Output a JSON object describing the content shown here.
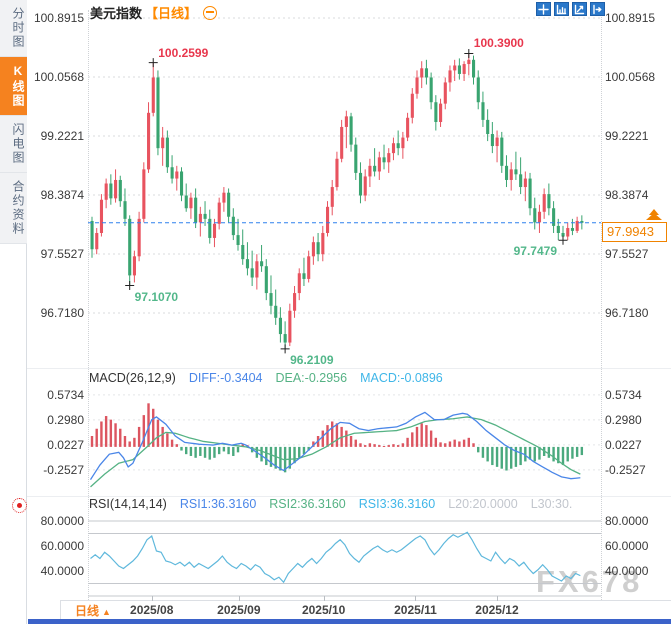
{
  "header": {
    "symbol": "美元指数",
    "period_tag": "【日线】"
  },
  "sidebar": {
    "tabs": [
      {
        "label": "分时图",
        "selected": false
      },
      {
        "label": "K线图",
        "selected": true
      },
      {
        "label": "闪电图",
        "selected": false
      },
      {
        "label": "合约资料",
        "selected": false
      }
    ]
  },
  "toolbar": {
    "icons": [
      "crosshair",
      "zoom-area",
      "trend-zoom",
      "pan-right"
    ]
  },
  "current_price": {
    "value": "97.9943"
  },
  "macd_panel": {
    "title": "MACD(26,12,9)",
    "diff_label": "DIFF:-0.3404",
    "dea_label": "DEA:-0.2956",
    "macd_label": "MACD:-0.0896"
  },
  "rsi_panel": {
    "title": "RSI(14,14,14)",
    "rsi1_label": "RSI1:36.3160",
    "rsi2_label": "RSI2:36.3160",
    "rsi3_label": "RSI3:36.3160",
    "l20_label": "L20:20.0000",
    "l30_label": "L30:30."
  },
  "bottom": {
    "period": "日线",
    "arrow": "▲"
  },
  "watermark": "FX678",
  "colors": {
    "up_candle": "#e8535f",
    "down_candle": "#39a470",
    "high_annotation": "#e8374d",
    "low_annotation": "#52b78a",
    "accent_orange": "#f5821f",
    "price_line_blue": "#2f80ed",
    "diff_line": "#4a86e8",
    "dea_line": "#55b284",
    "rsi_line": "#5fb8dc",
    "hist_up": "#dc5560",
    "hist_down": "#4aa97e",
    "toolbar_blue": "#2a78ca"
  },
  "chart_data": {
    "type": "candlestick+indicators",
    "symbol": "美元指数",
    "period": "日线",
    "price_axis_labels": [
      "100.8915",
      "100.0568",
      "99.2221",
      "98.3874",
      "97.5527",
      "96.7180"
    ],
    "price_axis_values": [
      100.8915,
      100.0568,
      99.2221,
      98.3874,
      97.5527,
      96.718
    ],
    "current_price": 97.9943,
    "x_ticks": [
      {
        "label": "2025/08",
        "index": 13
      },
      {
        "label": "2025/09",
        "index": 31.5
      },
      {
        "label": "2025/10",
        "index": 49.5
      },
      {
        "label": "2025/11",
        "index": 69
      },
      {
        "label": "2025/12",
        "index": 86.3
      }
    ],
    "annotations": [
      {
        "label": "100.2599",
        "index": 13,
        "price": 100.2599,
        "type": "high",
        "placement": "top-right"
      },
      {
        "label": "100.3900",
        "index": 80,
        "price": 100.39,
        "type": "high",
        "placement": "top-right"
      },
      {
        "label": "97.1070",
        "index": 8,
        "price": 97.107,
        "type": "low",
        "placement": "bottom-right"
      },
      {
        "label": "96.2109",
        "index": 41,
        "price": 96.2109,
        "type": "low",
        "placement": "bottom-right"
      },
      {
        "label": "97.7479",
        "index": 100,
        "price": 97.7479,
        "type": "low",
        "placement": "bottom-left"
      }
    ],
    "candles": [
      [
        98.02,
        98.08,
        97.5,
        97.62
      ],
      [
        97.62,
        97.92,
        97.55,
        97.85
      ],
      [
        97.85,
        98.4,
        97.8,
        98.32
      ],
      [
        98.32,
        98.62,
        98.2,
        98.55
      ],
      [
        98.55,
        98.68,
        98.25,
        98.34
      ],
      [
        98.34,
        98.75,
        98.28,
        98.6
      ],
      [
        98.6,
        98.66,
        98.22,
        98.3
      ],
      [
        98.3,
        98.48,
        97.95,
        98.05
      ],
      [
        98.05,
        98.1,
        97.107,
        97.25
      ],
      [
        97.25,
        97.6,
        97.15,
        97.52
      ],
      [
        97.52,
        98.15,
        97.45,
        98.05
      ],
      [
        98.05,
        98.85,
        98.0,
        98.75
      ],
      [
        98.75,
        99.7,
        98.7,
        99.55
      ],
      [
        99.55,
        100.2599,
        99.5,
        100.05
      ],
      [
        100.05,
        100.15,
        98.95,
        99.05
      ],
      [
        99.05,
        99.35,
        98.8,
        99.2
      ],
      [
        99.2,
        99.3,
        98.7,
        98.78
      ],
      [
        98.78,
        98.95,
        98.55,
        98.62
      ],
      [
        98.62,
        98.8,
        98.45,
        98.72
      ],
      [
        98.72,
        98.78,
        98.3,
        98.38
      ],
      [
        98.38,
        98.55,
        98.15,
        98.2
      ],
      [
        98.2,
        98.42,
        98.05,
        98.35
      ],
      [
        98.35,
        98.48,
        97.92,
        98.0
      ],
      [
        98.0,
        98.22,
        97.8,
        98.12
      ],
      [
        98.12,
        98.3,
        97.95,
        98.05
      ],
      [
        98.05,
        98.18,
        97.7,
        97.78
      ],
      [
        97.78,
        98.05,
        97.65,
        97.98
      ],
      [
        97.98,
        98.35,
        97.9,
        98.28
      ],
      [
        98.28,
        98.5,
        98.15,
        98.42
      ],
      [
        98.42,
        98.48,
        98.0,
        98.08
      ],
      [
        98.08,
        98.2,
        97.75,
        97.82
      ],
      [
        97.82,
        98.05,
        97.6,
        97.68
      ],
      [
        97.68,
        97.9,
        97.4,
        97.48
      ],
      [
        97.48,
        97.72,
        97.25,
        97.35
      ],
      [
        97.35,
        97.6,
        97.1,
        97.22
      ],
      [
        97.22,
        97.55,
        97.05,
        97.45
      ],
      [
        97.45,
        97.68,
        97.3,
        97.38
      ],
      [
        97.38,
        97.48,
        96.9,
        97.0
      ],
      [
        97.0,
        97.25,
        96.7,
        96.82
      ],
      [
        96.82,
        97.05,
        96.55,
        96.65
      ],
      [
        96.65,
        96.8,
        96.3,
        96.42
      ],
      [
        96.42,
        96.6,
        96.2109,
        96.3
      ],
      [
        96.3,
        96.85,
        96.25,
        96.75
      ],
      [
        96.75,
        97.1,
        96.65,
        97.0
      ],
      [
        97.0,
        97.35,
        96.9,
        97.28
      ],
      [
        97.28,
        97.5,
        97.1,
        97.2
      ],
      [
        97.2,
        97.6,
        97.15,
        97.52
      ],
      [
        97.52,
        97.8,
        97.4,
        97.72
      ],
      [
        97.72,
        97.85,
        97.45,
        97.55
      ],
      [
        97.55,
        97.95,
        97.45,
        97.85
      ],
      [
        97.85,
        98.3,
        97.8,
        98.22
      ],
      [
        98.22,
        98.6,
        98.1,
        98.5
      ],
      [
        98.5,
        99.0,
        98.45,
        98.9
      ],
      [
        98.9,
        99.45,
        98.85,
        99.35
      ],
      [
        99.35,
        99.58,
        99.05,
        99.5
      ],
      [
        99.5,
        99.55,
        99.0,
        99.1
      ],
      [
        99.1,
        99.2,
        98.6,
        98.7
      ],
      [
        98.7,
        98.85,
        98.27,
        98.38
      ],
      [
        98.38,
        98.75,
        98.3,
        98.65
      ],
      [
        98.65,
        98.9,
        98.5,
        98.8
      ],
      [
        98.8,
        99.05,
        98.65,
        98.72
      ],
      [
        98.72,
        99.0,
        98.6,
        98.92
      ],
      [
        98.92,
        99.1,
        98.75,
        98.85
      ],
      [
        98.85,
        99.05,
        98.7,
        98.98
      ],
      [
        98.98,
        99.2,
        98.88,
        99.12
      ],
      [
        99.12,
        99.3,
        98.95,
        99.05
      ],
      [
        99.05,
        99.28,
        98.9,
        99.2
      ],
      [
        99.2,
        99.55,
        99.15,
        99.48
      ],
      [
        99.48,
        99.9,
        99.4,
        99.82
      ],
      [
        99.82,
        100.15,
        99.75,
        100.05
      ],
      [
        100.05,
        100.28,
        99.9,
        100.18
      ],
      [
        100.18,
        100.3,
        99.95,
        100.05
      ],
      [
        100.05,
        100.12,
        99.6,
        99.7
      ],
      [
        99.7,
        99.8,
        99.3,
        99.42
      ],
      [
        99.42,
        99.75,
        99.35,
        99.68
      ],
      [
        99.68,
        100.05,
        99.6,
        99.98
      ],
      [
        99.98,
        100.22,
        99.85,
        100.15
      ],
      [
        100.15,
        100.3,
        100.0,
        100.22
      ],
      [
        100.22,
        100.32,
        100.02,
        100.1
      ],
      [
        100.1,
        100.28,
        100.0,
        100.24
      ],
      [
        100.24,
        100.39,
        100.08,
        100.3
      ],
      [
        100.3,
        100.36,
        99.95,
        100.05
      ],
      [
        100.05,
        100.15,
        99.6,
        99.7
      ],
      [
        99.7,
        99.85,
        99.35,
        99.45
      ],
      [
        99.45,
        99.6,
        99.15,
        99.25
      ],
      [
        99.25,
        99.42,
        98.98,
        99.08
      ],
      [
        99.08,
        99.3,
        98.85,
        99.2
      ],
      [
        99.2,
        99.28,
        98.7,
        98.8
      ],
      [
        98.8,
        98.95,
        98.5,
        98.6
      ],
      [
        98.6,
        98.85,
        98.45,
        98.75
      ],
      [
        98.75,
        99.0,
        98.6,
        98.68
      ],
      [
        98.68,
        98.92,
        98.4,
        98.5
      ],
      [
        98.5,
        98.72,
        98.3,
        98.62
      ],
      [
        98.62,
        98.7,
        98.1,
        98.2
      ],
      [
        98.2,
        98.35,
        97.9,
        98.0
      ],
      [
        98.0,
        98.25,
        97.85,
        98.15
      ],
      [
        98.15,
        98.48,
        98.05,
        98.4
      ],
      [
        98.4,
        98.55,
        98.1,
        98.2
      ],
      [
        98.2,
        98.3,
        97.85,
        97.95
      ],
      [
        97.95,
        98.05,
        97.75,
        97.85
      ],
      [
        97.85,
        97.95,
        97.7479,
        97.8
      ],
      [
        97.8,
        98.0,
        97.75,
        97.92
      ],
      [
        97.92,
        98.05,
        97.82,
        97.88
      ],
      [
        97.88,
        98.08,
        97.85,
        98.02
      ],
      [
        98.02,
        98.1,
        97.9,
        97.9943
      ]
    ],
    "macd": {
      "params": [
        26,
        12,
        9
      ],
      "diff": -0.3404,
      "dea": -0.2956,
      "macd": -0.0896,
      "axis_labels": [
        "0.5734",
        "0.2980",
        "0.0227",
        "-0.2527"
      ],
      "axis_values": [
        0.5734,
        0.298,
        0.0227,
        -0.2527
      ],
      "hist": [
        0.12,
        0.2,
        0.28,
        0.34,
        0.3,
        0.26,
        0.2,
        0.12,
        0.06,
        0.1,
        0.22,
        0.35,
        0.48,
        0.42,
        0.3,
        0.22,
        0.15,
        0.08,
        0.03,
        -0.04,
        -0.08,
        -0.1,
        -0.12,
        -0.1,
        -0.12,
        -0.14,
        -0.12,
        -0.08,
        -0.05,
        -0.08,
        -0.1,
        -0.06,
        0.03,
        0.02,
        -0.06,
        -0.12,
        -0.16,
        -0.2,
        -0.22,
        -0.24,
        -0.26,
        -0.28,
        -0.24,
        -0.18,
        -0.12,
        -0.08,
        -0.04,
        0.06,
        0.12,
        0.18,
        0.24,
        0.28,
        0.26,
        0.22,
        0.18,
        0.12,
        0.08,
        0.04,
        0.02,
        0.04,
        0.03,
        0.02,
        0.01,
        0.02,
        0.03,
        0.02,
        0.04,
        0.1,
        0.16,
        0.22,
        0.26,
        0.24,
        0.18,
        0.1,
        0.05,
        0.04,
        0.06,
        0.08,
        0.06,
        0.08,
        0.1,
        0.04,
        -0.06,
        -0.12,
        -0.16,
        -0.2,
        -0.22,
        -0.24,
        -0.26,
        -0.24,
        -0.22,
        -0.2,
        -0.16,
        -0.14,
        -0.16,
        -0.14,
        -0.1,
        -0.12,
        -0.16,
        -0.18,
        -0.2,
        -0.16,
        -0.13,
        -0.11,
        -0.09
      ],
      "diff_points": [
        [
          0,
          -0.36
        ],
        [
          2,
          -0.2
        ],
        [
          4,
          -0.08
        ],
        [
          6,
          -0.06
        ],
        [
          7,
          -0.12
        ],
        [
          8,
          -0.22
        ],
        [
          9,
          -0.18
        ],
        [
          11,
          0.05
        ],
        [
          13,
          0.3
        ],
        [
          14,
          0.33
        ],
        [
          16,
          0.25
        ],
        [
          18,
          0.12
        ],
        [
          20,
          0.05
        ],
        [
          23,
          0.03
        ],
        [
          26,
          0.02
        ],
        [
          28,
          0.04
        ],
        [
          30,
          0.02
        ],
        [
          32,
          0.04
        ],
        [
          33,
          0.02
        ],
        [
          35,
          -0.05
        ],
        [
          37,
          -0.12
        ],
        [
          39,
          -0.2
        ],
        [
          41,
          -0.26
        ],
        [
          43,
          -0.18
        ],
        [
          45,
          -0.1
        ],
        [
          47,
          0.0
        ],
        [
          49,
          0.1
        ],
        [
          51,
          0.2
        ],
        [
          53,
          0.27
        ],
        [
          55,
          0.26
        ],
        [
          57,
          0.2
        ],
        [
          59,
          0.18
        ],
        [
          61,
          0.2
        ],
        [
          63,
          0.21
        ],
        [
          65,
          0.22
        ],
        [
          67,
          0.26
        ],
        [
          69,
          0.33
        ],
        [
          71,
          0.38
        ],
        [
          73,
          0.3
        ],
        [
          75,
          0.3
        ],
        [
          77,
          0.35
        ],
        [
          79,
          0.37
        ],
        [
          80,
          0.36
        ],
        [
          82,
          0.28
        ],
        [
          84,
          0.18
        ],
        [
          86,
          0.1
        ],
        [
          88,
          0.02
        ],
        [
          90,
          -0.04
        ],
        [
          92,
          -0.08
        ],
        [
          94,
          -0.16
        ],
        [
          96,
          -0.22
        ],
        [
          98,
          -0.28
        ],
        [
          100,
          -0.33
        ],
        [
          102,
          -0.35
        ],
        [
          104,
          -0.34
        ]
      ],
      "dea_points": [
        [
          0,
          -0.44
        ],
        [
          3,
          -0.3
        ],
        [
          6,
          -0.18
        ],
        [
          9,
          -0.14
        ],
        [
          12,
          0.0
        ],
        [
          14,
          0.1
        ],
        [
          16,
          0.16
        ],
        [
          18,
          0.15
        ],
        [
          21,
          0.1
        ],
        [
          24,
          0.06
        ],
        [
          27,
          0.04
        ],
        [
          30,
          0.02
        ],
        [
          33,
          0.0
        ],
        [
          36,
          -0.04
        ],
        [
          39,
          -0.1
        ],
        [
          41,
          -0.14
        ],
        [
          44,
          -0.13
        ],
        [
          47,
          -0.08
        ],
        [
          50,
          0.0
        ],
        [
          53,
          0.1
        ],
        [
          56,
          0.15
        ],
        [
          59,
          0.16
        ],
        [
          62,
          0.17
        ],
        [
          65,
          0.18
        ],
        [
          68,
          0.22
        ],
        [
          71,
          0.28
        ],
        [
          74,
          0.3
        ],
        [
          77,
          0.31
        ],
        [
          80,
          0.33
        ],
        [
          83,
          0.3
        ],
        [
          86,
          0.24
        ],
        [
          89,
          0.16
        ],
        [
          92,
          0.08
        ],
        [
          95,
          0.0
        ],
        [
          98,
          -0.1
        ],
        [
          100,
          -0.18
        ],
        [
          102,
          -0.25
        ],
        [
          104,
          -0.3
        ]
      ]
    },
    "rsi": {
      "params": [
        14,
        14,
        14
      ],
      "rsi1": 36.316,
      "rsi2": 36.316,
      "rsi3": 36.316,
      "level_lines": [
        80,
        70,
        30,
        20
      ],
      "axis_labels": [
        "80.0000",
        "60.0000",
        "40.0000"
      ],
      "axis_values": [
        80,
        60,
        40
      ],
      "values": [
        50,
        53,
        50,
        55,
        52,
        48,
        44,
        42,
        45,
        48,
        52,
        58,
        65,
        68,
        56,
        55,
        48,
        47,
        45,
        47,
        44,
        47,
        43,
        46,
        44,
        42,
        45,
        48,
        52,
        47,
        44,
        42,
        46,
        44,
        41,
        45,
        43,
        38,
        36,
        33,
        35,
        31,
        38,
        42,
        46,
        43,
        47,
        50,
        46,
        50,
        55,
        58,
        62,
        65,
        61,
        54,
        50,
        47,
        52,
        55,
        58,
        60,
        57,
        55,
        57,
        55,
        57,
        60,
        63,
        66,
        68,
        65,
        58,
        53,
        57,
        62,
        66,
        69,
        67,
        69,
        71,
        65,
        58,
        52,
        50,
        48,
        55,
        50,
        46,
        50,
        48,
        44,
        47,
        42,
        38,
        41,
        45,
        41,
        36,
        34,
        32,
        36,
        34,
        38,
        36.3
      ]
    }
  }
}
